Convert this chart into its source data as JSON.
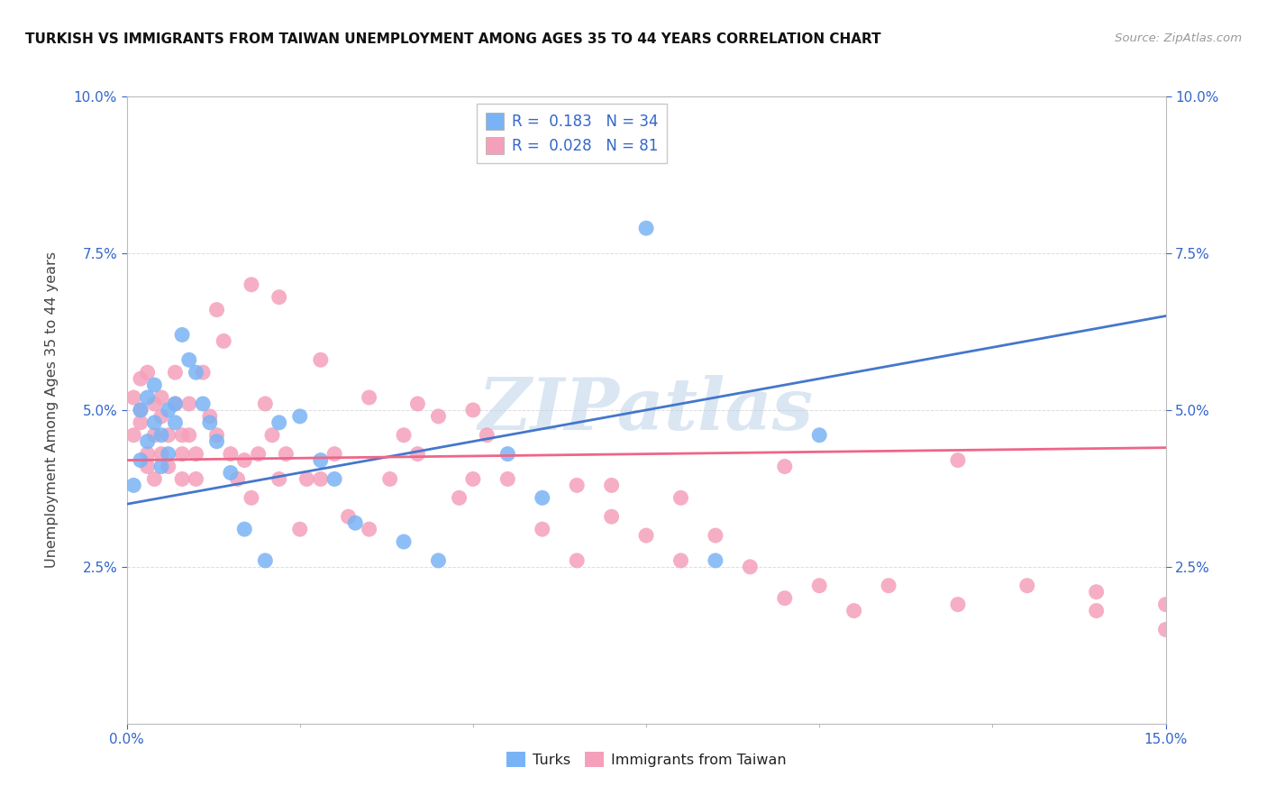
{
  "title": "TURKISH VS IMMIGRANTS FROM TAIWAN UNEMPLOYMENT AMONG AGES 35 TO 44 YEARS CORRELATION CHART",
  "source": "Source: ZipAtlas.com",
  "ylabel": "Unemployment Among Ages 35 to 44 years",
  "xlim": [
    0.0,
    0.15
  ],
  "ylim": [
    0.0,
    0.1
  ],
  "xtick_positions": [
    0.0,
    0.15
  ],
  "xticklabels": [
    "0.0%",
    "15.0%"
  ],
  "ytick_positions": [
    0.025,
    0.05,
    0.075,
    0.1
  ],
  "yticklabels": [
    "2.5%",
    "5.0%",
    "7.5%",
    "10.0%"
  ],
  "blue_R": "0.183",
  "blue_N": "34",
  "pink_R": "0.028",
  "pink_N": "81",
  "blue_color": "#7ab3f5",
  "pink_color": "#f5a0bb",
  "blue_line_color": "#4477cc",
  "pink_line_color": "#ee6688",
  "grid_color": "#dddddd",
  "watermark_color": "#b8cfe8",
  "turks_x": [
    0.001,
    0.002,
    0.002,
    0.003,
    0.003,
    0.004,
    0.004,
    0.005,
    0.005,
    0.006,
    0.006,
    0.007,
    0.007,
    0.008,
    0.009,
    0.01,
    0.011,
    0.012,
    0.013,
    0.015,
    0.017,
    0.02,
    0.022,
    0.025,
    0.028,
    0.03,
    0.033,
    0.04,
    0.045,
    0.055,
    0.06,
    0.075,
    0.085,
    0.1
  ],
  "turks_y": [
    0.038,
    0.042,
    0.05,
    0.045,
    0.052,
    0.048,
    0.054,
    0.041,
    0.046,
    0.043,
    0.05,
    0.051,
    0.048,
    0.062,
    0.058,
    0.056,
    0.051,
    0.048,
    0.045,
    0.04,
    0.031,
    0.026,
    0.048,
    0.049,
    0.042,
    0.039,
    0.032,
    0.029,
    0.026,
    0.043,
    0.036,
    0.079,
    0.026,
    0.046
  ],
  "taiwan_x": [
    0.001,
    0.001,
    0.002,
    0.002,
    0.002,
    0.003,
    0.003,
    0.003,
    0.004,
    0.004,
    0.004,
    0.005,
    0.005,
    0.005,
    0.006,
    0.006,
    0.007,
    0.007,
    0.008,
    0.008,
    0.008,
    0.009,
    0.009,
    0.01,
    0.01,
    0.011,
    0.012,
    0.013,
    0.013,
    0.014,
    0.015,
    0.016,
    0.017,
    0.018,
    0.019,
    0.02,
    0.021,
    0.022,
    0.023,
    0.025,
    0.026,
    0.028,
    0.03,
    0.032,
    0.035,
    0.038,
    0.04,
    0.042,
    0.045,
    0.048,
    0.05,
    0.052,
    0.055,
    0.06,
    0.065,
    0.07,
    0.07,
    0.075,
    0.08,
    0.085,
    0.09,
    0.095,
    0.1,
    0.105,
    0.11,
    0.12,
    0.13,
    0.14,
    0.15,
    0.018,
    0.022,
    0.028,
    0.035,
    0.042,
    0.05,
    0.065,
    0.08,
    0.095,
    0.12,
    0.14,
    0.15
  ],
  "taiwan_y": [
    0.046,
    0.052,
    0.05,
    0.048,
    0.055,
    0.043,
    0.041,
    0.056,
    0.039,
    0.046,
    0.051,
    0.043,
    0.049,
    0.052,
    0.041,
    0.046,
    0.056,
    0.051,
    0.043,
    0.039,
    0.046,
    0.046,
    0.051,
    0.043,
    0.039,
    0.056,
    0.049,
    0.046,
    0.066,
    0.061,
    0.043,
    0.039,
    0.042,
    0.036,
    0.043,
    0.051,
    0.046,
    0.039,
    0.043,
    0.031,
    0.039,
    0.039,
    0.043,
    0.033,
    0.031,
    0.039,
    0.046,
    0.043,
    0.049,
    0.036,
    0.039,
    0.046,
    0.039,
    0.031,
    0.026,
    0.033,
    0.038,
    0.03,
    0.026,
    0.03,
    0.025,
    0.02,
    0.022,
    0.018,
    0.022,
    0.019,
    0.022,
    0.018,
    0.015,
    0.07,
    0.068,
    0.058,
    0.052,
    0.051,
    0.05,
    0.038,
    0.036,
    0.041,
    0.042,
    0.021,
    0.019
  ]
}
